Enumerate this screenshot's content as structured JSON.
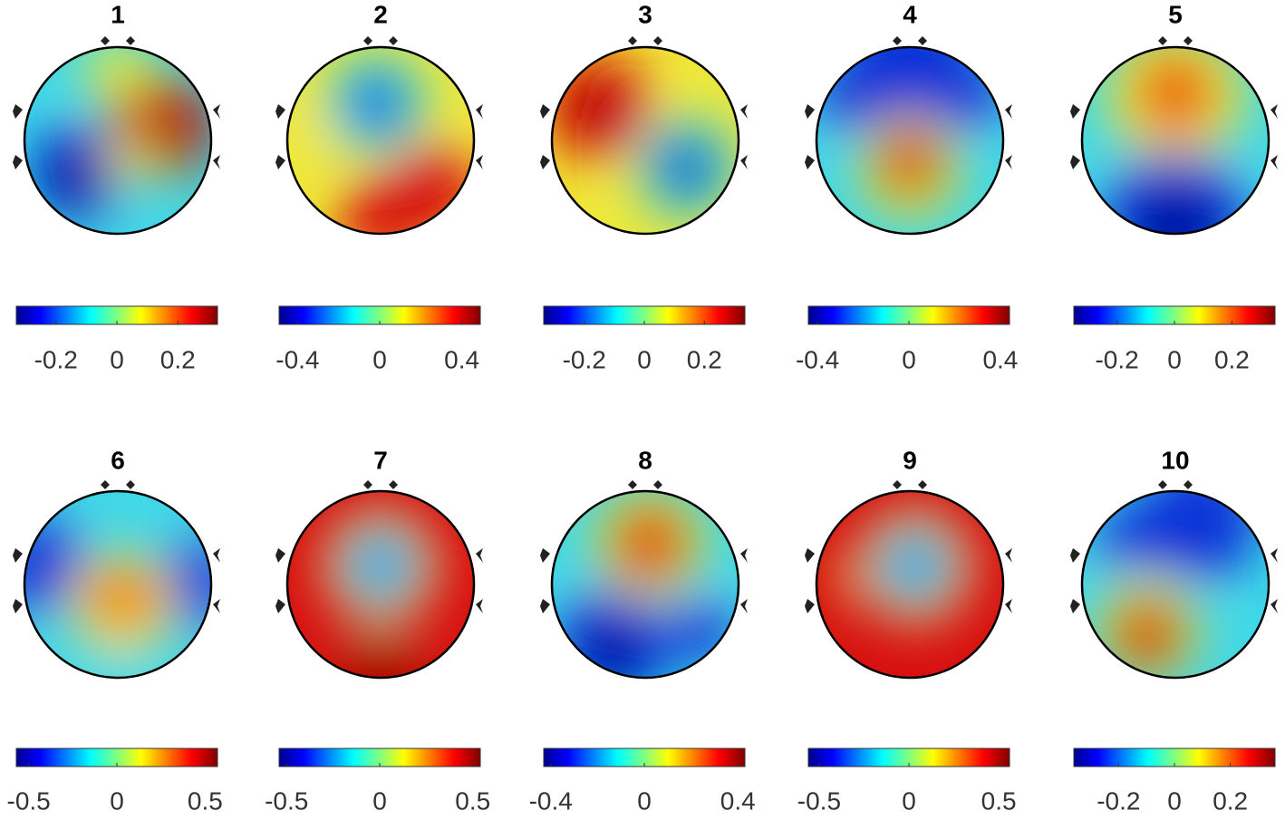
{
  "chart_data": [
    {
      "type": "topomap",
      "title": "1",
      "colormap": "jet",
      "clim": [
        -0.33,
        0.33
      ],
      "cticks": [
        -0.2,
        0,
        0.2
      ]
    },
    {
      "type": "topomap",
      "title": "2",
      "colormap": "jet",
      "clim": [
        -0.49,
        0.49
      ],
      "cticks": [
        -0.4,
        0,
        0.4
      ]
    },
    {
      "type": "topomap",
      "title": "3",
      "colormap": "jet",
      "clim": [
        -0.335,
        0.335
      ],
      "cticks": [
        -0.2,
        0,
        0.2
      ]
    },
    {
      "type": "topomap",
      "title": "4",
      "colormap": "jet",
      "clim": [
        -0.44,
        0.44
      ],
      "cticks": [
        -0.4,
        0,
        0.4
      ]
    },
    {
      "type": "topomap",
      "title": "5",
      "colormap": "jet",
      "clim": [
        -0.35,
        0.35
      ],
      "cticks": [
        -0.2,
        0,
        0.2
      ]
    },
    {
      "type": "topomap",
      "title": "6",
      "colormap": "jet",
      "clim": [
        -0.57,
        0.57
      ],
      "cticks": [
        -0.5,
        0,
        0.5
      ]
    },
    {
      "type": "topomap",
      "title": "7",
      "colormap": "jet",
      "clim": [
        -0.54,
        0.54
      ],
      "cticks": [
        -0.5,
        0,
        0.5
      ]
    },
    {
      "type": "topomap",
      "title": "8",
      "colormap": "jet",
      "clim": [
        -0.43,
        0.43
      ],
      "cticks": [
        -0.4,
        0,
        0.4
      ]
    },
    {
      "type": "topomap",
      "title": "9",
      "colormap": "jet",
      "clim": [
        -0.56,
        0.56
      ],
      "cticks": [
        -0.5,
        0,
        0.5
      ]
    },
    {
      "type": "topomap",
      "title": "10",
      "colormap": "jet",
      "clim": [
        -0.36,
        0.36
      ],
      "cticks": [
        -0.2,
        0,
        0.2
      ]
    }
  ]
}
